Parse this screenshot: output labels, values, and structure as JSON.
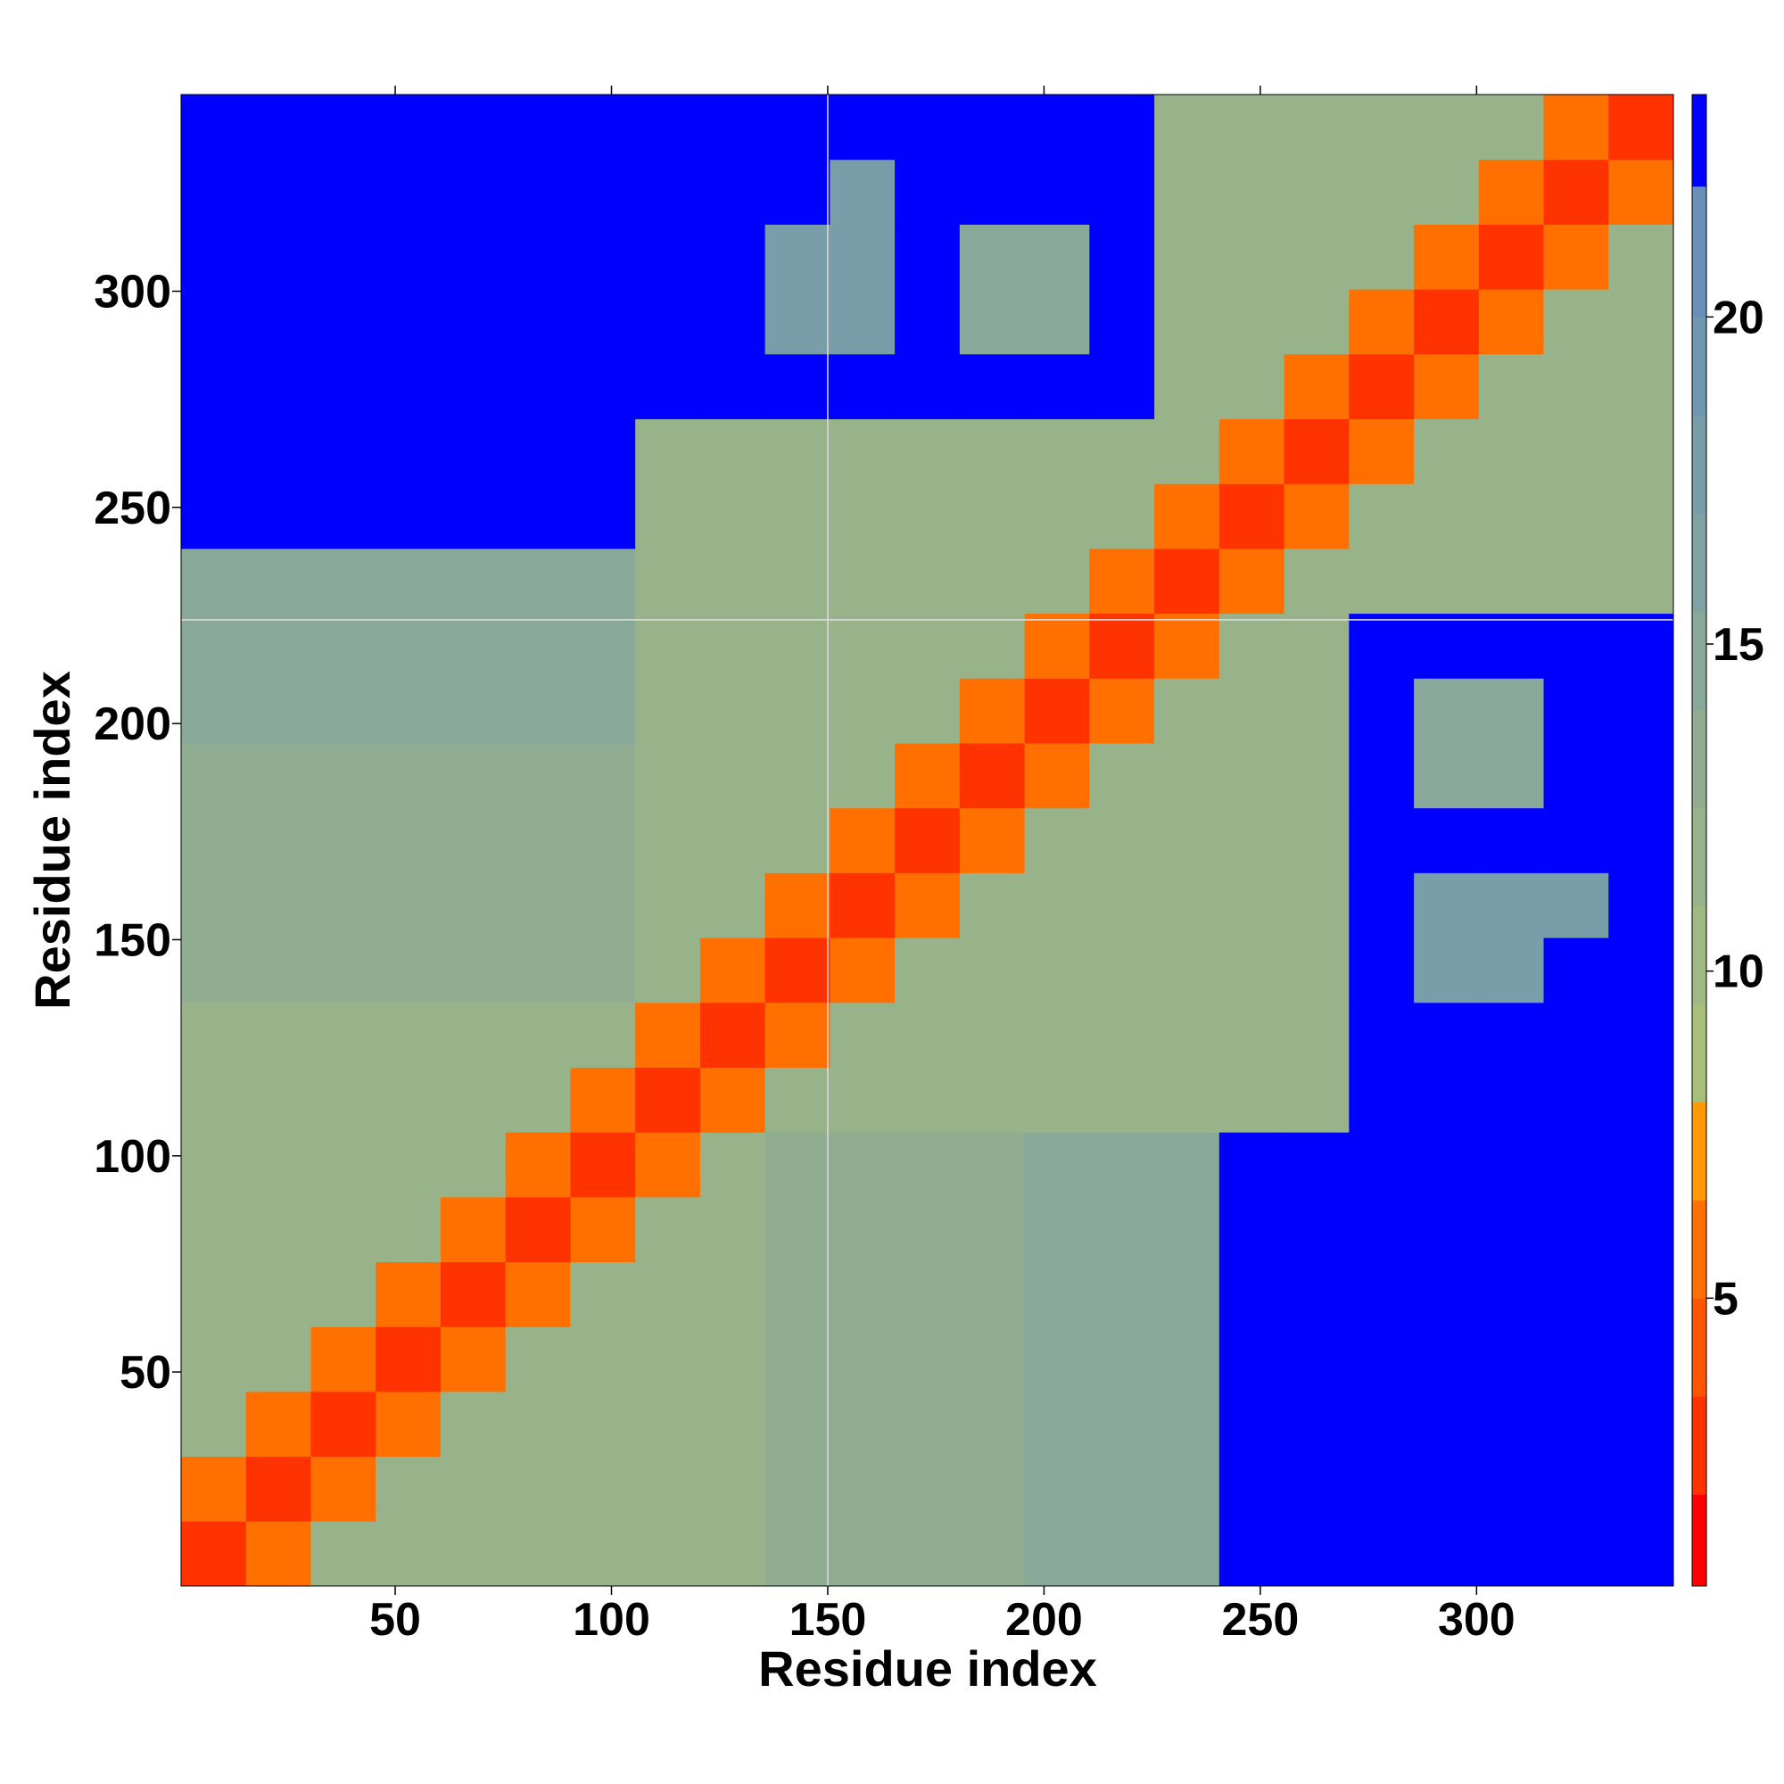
{
  "chart_data": {
    "type": "heatmap",
    "xlabel": "Residue index",
    "ylabel": "Residue index",
    "xlim": [
      0.5,
      345.5
    ],
    "ylim": [
      0.5,
      345.5
    ],
    "xticks": [
      50,
      100,
      150,
      200,
      250,
      300
    ],
    "yticks": [
      50,
      100,
      150,
      200,
      250,
      300
    ],
    "bins": [
      0.5,
      15.5,
      30.5,
      45.5,
      60.5,
      75.5,
      90.5,
      105.5,
      120.5,
      135.5,
      150.5,
      165.5,
      180.5,
      195.5,
      210.5,
      225.5,
      240.5,
      255.5,
      270.5,
      285.5,
      300.5,
      315.5,
      330.5,
      345.5
    ],
    "reference_lines": {
      "x": 150,
      "y": 224,
      "color": "#dddddd"
    },
    "clim": [
      0.6,
      23.4
    ],
    "cticks": [
      5,
      10,
      15,
      20
    ],
    "color_bands": [
      {
        "from": 0.6,
        "to": 2,
        "color": "#ff0000"
      },
      {
        "from": 2,
        "to": 3.5,
        "color": "#ff3300"
      },
      {
        "from": 3.5,
        "to": 5,
        "color": "#ff5500"
      },
      {
        "from": 5,
        "to": 6.5,
        "color": "#ff7000"
      },
      {
        "from": 6.5,
        "to": 8,
        "color": "#ff9900"
      },
      {
        "from": 8,
        "to": 9.5,
        "color": "#a8bf7a"
      },
      {
        "from": 9.5,
        "to": 11,
        "color": "#a0b882"
      },
      {
        "from": 11,
        "to": 12.5,
        "color": "#98b38a"
      },
      {
        "from": 12.5,
        "to": 14,
        "color": "#90ad92"
      },
      {
        "from": 14,
        "to": 15.5,
        "color": "#88a89a"
      },
      {
        "from": 15.5,
        "to": 17,
        "color": "#80a2a2"
      },
      {
        "from": 17,
        "to": 18.5,
        "color": "#7a9daa"
      },
      {
        "from": 18.5,
        "to": 20,
        "color": "#7097b0"
      },
      {
        "from": 20,
        "to": 22,
        "color": "#6890b8"
      },
      {
        "from": 22,
        "to": 23.4,
        "color": "#0000ff"
      }
    ],
    "values": [
      [
        3,
        6,
        12,
        12,
        12,
        12,
        12,
        12,
        12,
        13,
        13,
        13,
        13,
        15,
        15,
        15,
        23,
        23,
        23,
        23,
        23,
        23,
        23
      ],
      [
        6,
        3,
        6,
        12,
        12,
        12,
        12,
        12,
        12,
        13,
        13,
        13,
        13,
        15,
        15,
        15,
        23,
        23,
        23,
        23,
        23,
        23,
        23
      ],
      [
        12,
        6,
        3,
        6,
        12,
        12,
        12,
        12,
        12,
        13,
        13,
        13,
        13,
        15,
        15,
        15,
        23,
        23,
        23,
        23,
        23,
        23,
        23
      ],
      [
        12,
        12,
        6,
        3,
        6,
        12,
        12,
        12,
        12,
        13,
        13,
        13,
        13,
        15,
        15,
        15,
        23,
        23,
        23,
        23,
        23,
        23,
        23
      ],
      [
        12,
        12,
        12,
        6,
        3,
        6,
        12,
        12,
        12,
        13,
        13,
        13,
        13,
        15,
        15,
        15,
        23,
        23,
        23,
        23,
        23,
        23,
        23
      ],
      [
        12,
        12,
        12,
        12,
        6,
        3,
        6,
        12,
        12,
        13,
        13,
        13,
        13,
        15,
        15,
        15,
        23,
        23,
        23,
        23,
        23,
        23,
        23
      ],
      [
        12,
        12,
        12,
        12,
        12,
        6,
        3,
        6,
        12,
        13,
        13,
        13,
        13,
        15,
        15,
        15,
        23,
        23,
        23,
        23,
        23,
        23,
        23
      ],
      [
        12,
        12,
        12,
        12,
        12,
        12,
        6,
        3,
        6,
        12,
        12,
        12,
        12,
        12,
        12,
        12,
        12,
        12,
        23,
        23,
        23,
        23,
        23
      ],
      [
        12,
        12,
        12,
        12,
        12,
        12,
        12,
        6,
        3,
        6,
        12,
        12,
        12,
        12,
        12,
        12,
        12,
        12,
        23,
        23,
        23,
        23,
        23
      ],
      [
        13,
        13,
        13,
        13,
        13,
        13,
        13,
        12,
        6,
        3,
        6,
        12,
        12,
        12,
        12,
        12,
        12,
        12,
        23,
        18,
        18,
        23,
        23
      ],
      [
        13,
        13,
        13,
        13,
        13,
        13,
        13,
        12,
        12,
        6,
        3,
        6,
        12,
        12,
        12,
        12,
        12,
        12,
        23,
        17,
        17,
        17,
        23
      ],
      [
        13,
        13,
        13,
        13,
        13,
        13,
        13,
        12,
        12,
        12,
        6,
        3,
        6,
        12,
        12,
        12,
        12,
        12,
        23,
        23,
        23,
        23,
        23
      ],
      [
        13,
        13,
        13,
        13,
        13,
        13,
        13,
        12,
        12,
        12,
        12,
        6,
        3,
        6,
        12,
        12,
        12,
        12,
        23,
        14,
        14,
        23,
        23
      ],
      [
        15,
        15,
        15,
        15,
        15,
        15,
        15,
        12,
        12,
        12,
        12,
        12,
        6,
        3,
        6,
        12,
        12,
        12,
        23,
        14,
        14,
        23,
        23
      ],
      [
        15,
        15,
        15,
        15,
        15,
        15,
        15,
        12,
        12,
        12,
        12,
        12,
        12,
        6,
        3,
        6,
        12,
        12,
        23,
        23,
        23,
        23,
        23
      ],
      [
        15,
        15,
        15,
        15,
        15,
        15,
        15,
        12,
        12,
        12,
        12,
        12,
        12,
        12,
        6,
        3,
        6,
        12,
        12,
        12,
        12,
        12,
        12
      ],
      [
        23,
        23,
        23,
        23,
        23,
        23,
        23,
        12,
        12,
        12,
        12,
        12,
        12,
        12,
        12,
        6,
        3,
        6,
        12,
        12,
        12,
        12,
        12
      ],
      [
        23,
        23,
        23,
        23,
        23,
        23,
        23,
        12,
        12,
        12,
        12,
        12,
        12,
        12,
        12,
        12,
        6,
        3,
        6,
        12,
        12,
        12,
        12
      ],
      [
        23,
        23,
        23,
        23,
        23,
        23,
        23,
        23,
        23,
        23,
        23,
        23,
        23,
        23,
        23,
        12,
        12,
        6,
        3,
        6,
        12,
        12,
        12
      ],
      [
        23,
        23,
        23,
        23,
        23,
        23,
        23,
        23,
        23,
        18,
        17,
        23,
        14,
        14,
        23,
        12,
        12,
        12,
        6,
        3,
        6,
        12,
        12
      ],
      [
        23,
        23,
        23,
        23,
        23,
        23,
        23,
        23,
        23,
        18,
        17,
        23,
        14,
        14,
        23,
        12,
        12,
        12,
        12,
        6,
        3,
        6,
        12
      ],
      [
        23,
        23,
        23,
        23,
        23,
        23,
        23,
        23,
        23,
        23,
        17,
        23,
        23,
        23,
        23,
        12,
        12,
        12,
        12,
        12,
        6,
        3,
        6
      ],
      [
        23,
        23,
        23,
        23,
        23,
        23,
        23,
        23,
        23,
        23,
        23,
        23,
        23,
        23,
        23,
        12,
        12,
        12,
        12,
        12,
        12,
        6,
        3
      ]
    ]
  }
}
